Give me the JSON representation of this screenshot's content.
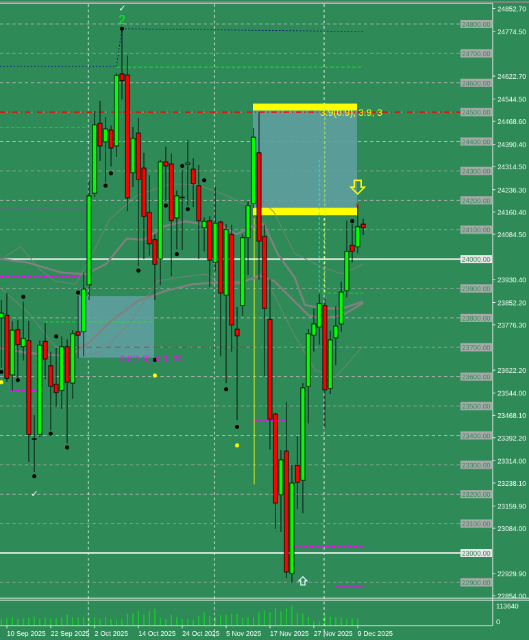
{
  "chart_data": {
    "type": "candlestick",
    "colors": {
      "background": "#2e8b57",
      "bull": "#00ff00",
      "bear": "#ff0000",
      "wick": "#000000",
      "volume": "#00ff00",
      "ma": "#808080",
      "zone": "#5f9ea0",
      "zone_edge": "#ffff00"
    },
    "y_axis": {
      "range": [
        22854.0,
        24852.7
      ],
      "tick_labels": [
        "24852.70",
        "24774.50",
        "24622.70",
        "24544.50",
        "24468.60",
        "24390.40",
        "24314.50",
        "24236.30",
        "24160.40",
        "24084.50",
        "23930.40",
        "23852.20",
        "23776.30",
        "23622.20",
        "23544.00",
        "23468.10",
        "23392.20",
        "23314.00",
        "23238.10",
        "23159.90",
        "23084.00",
        "22929.90",
        "22854.00"
      ],
      "level_labels": [
        "24800.00",
        "24700.00",
        "24600.00",
        "24500.00",
        "24400.00",
        "24300.00",
        "24200.00",
        "24100.00",
        "24000.00",
        "23900.00",
        "23800.00",
        "23700.00",
        "23600.00",
        "23500.00",
        "23400.00",
        "23300.00",
        "23200.00",
        "23100.00",
        "23000.00",
        "22900.00"
      ],
      "highlighted_levels": [
        "24000.00",
        "23000.00"
      ]
    },
    "x_axis": {
      "tick_labels": [
        {
          "bar": 1,
          "label": "10 Sep 2025"
        },
        {
          "bar": 9,
          "label": "22 Sep 2025"
        },
        {
          "bar": 17,
          "label": "2 Oct 2025"
        },
        {
          "bar": 25,
          "label": "14 Oct 2025"
        },
        {
          "bar": 33,
          "label": "24 Oct 2025"
        },
        {
          "bar": 41,
          "label": "5 Nov 2025"
        },
        {
          "bar": 49,
          "label": "17 Nov 2025"
        },
        {
          "bar": 57,
          "label": "27 Nov 2025"
        },
        {
          "bar": 65,
          "label": "9 Dec 2025"
        }
      ],
      "dashed_separators_at_bars": [
        16,
        39,
        59
      ]
    },
    "candles_ohlc": [
      [
        23800,
        23860,
        23630,
        23816
      ],
      [
        23809,
        23884,
        23583,
        23594
      ],
      [
        23606,
        23788,
        23553,
        23758
      ],
      [
        23760,
        23793,
        23597,
        23709
      ],
      [
        23702,
        23856,
        23655,
        23730
      ],
      [
        23723,
        23790,
        23310,
        23403
      ],
      [
        23389,
        23469,
        23275,
        23387
      ],
      [
        23403,
        23723,
        23394,
        23707
      ],
      [
        23720,
        23783,
        23592,
        23660
      ],
      [
        23637,
        23685,
        23417,
        23567
      ],
      [
        23574,
        23699,
        23497,
        23546
      ],
      [
        23553,
        23737,
        23490,
        23702
      ],
      [
        23702,
        23727,
        23373,
        23581
      ],
      [
        23578,
        23758,
        23525,
        23746
      ],
      [
        23753,
        23874,
        23662,
        23741
      ],
      [
        23753,
        23954,
        23669,
        23898
      ],
      [
        23912,
        24268,
        23860,
        24215
      ],
      [
        24224,
        24504,
        24210,
        24457
      ],
      [
        24462,
        24539,
        24334,
        24385
      ],
      [
        24399,
        24483,
        24261,
        24443
      ],
      [
        24439,
        24455,
        24315,
        24378
      ],
      [
        24385,
        24632,
        24348,
        24625
      ],
      [
        24630,
        24784,
        24543,
        24607
      ],
      [
        24627,
        24693,
        24163,
        24208
      ],
      [
        24294,
        24450,
        24245,
        24411
      ],
      [
        24429,
        24481,
        23977,
        24271
      ],
      [
        24310,
        24362,
        24000,
        24145
      ],
      [
        24159,
        24285,
        24012,
        24052
      ],
      [
        24066,
        24084,
        23860,
        23982
      ],
      [
        24000,
        24338,
        23912,
        24331
      ],
      [
        24331,
        24383,
        24198,
        24317
      ],
      [
        24324,
        24359,
        23942,
        24131
      ],
      [
        24140,
        24233,
        24033,
        24215
      ],
      [
        24211,
        24303,
        24031,
        24209
      ],
      [
        24322,
        24406,
        24182,
        24327
      ],
      [
        24306,
        24343,
        24177,
        24257
      ],
      [
        24250,
        24320,
        24000,
        24131
      ],
      [
        24107,
        24142,
        24026,
        24128
      ],
      [
        24131,
        24147,
        23905,
        23996
      ],
      [
        23989,
        24247,
        23958,
        24122
      ],
      [
        24126,
        24131,
        23669,
        23884
      ],
      [
        23877,
        24119,
        23578,
        24101
      ],
      [
        24084,
        24117,
        23683,
        23776
      ],
      [
        23762,
        23837,
        23452,
        23739
      ],
      [
        23842,
        24084,
        23807,
        24073
      ],
      [
        24073,
        24196,
        23947,
        24182
      ],
      [
        24189,
        24446,
        24173,
        24415
      ],
      [
        24362,
        24499,
        23930,
        24061
      ],
      [
        24077,
        24117,
        23602,
        23832
      ],
      [
        23795,
        23933,
        23352,
        23455
      ],
      [
        23473,
        23478,
        23082,
        23170
      ],
      [
        23198,
        23350,
        23072,
        23317
      ],
      [
        23347,
        23513,
        22914,
        22935
      ],
      [
        22930,
        23301,
        22897,
        23238
      ],
      [
        23298,
        23399,
        23149,
        23240
      ],
      [
        23247,
        23578,
        23135,
        23562
      ],
      [
        23567,
        23762,
        23441,
        23746
      ],
      [
        23741,
        23832,
        23685,
        23779
      ],
      [
        23769,
        23881,
        23709,
        23849
      ],
      [
        23842,
        23863,
        23424,
        23555
      ],
      [
        23560,
        23756,
        23541,
        23725
      ],
      [
        23732,
        23839,
        23639,
        23772
      ],
      [
        23779,
        23923,
        23753,
        23888
      ],
      [
        23893,
        24131,
        23870,
        24026
      ],
      [
        24047,
        24119,
        23989,
        24026
      ],
      [
        24042,
        24184,
        24019,
        24110
      ],
      [
        24119,
        24138,
        24082,
        24107
      ]
    ],
    "volume": {
      "axis_labels": [
        "113640",
        "0"
      ],
      "range": [
        0,
        113640
      ],
      "values": [
        38600,
        42000,
        45400,
        38600,
        42000,
        45400,
        52300,
        42000,
        45400,
        42000,
        42000,
        45400,
        62500,
        48800,
        45400,
        48800,
        48800,
        48800,
        38600,
        48800,
        38600,
        35200,
        38600,
        65900,
        69300,
        82900,
        62500,
        82900,
        96600,
        45400,
        38600,
        62500,
        48800,
        38600,
        35200,
        31800,
        55700,
        76100,
        55700,
        48800,
        59100,
        59100,
        69300,
        65900,
        45400,
        48800,
        48800,
        76100,
        86300,
        76100,
        100000,
        82900,
        100000,
        113640,
        72700,
        69300,
        48800,
        25000,
        21600,
        62500,
        52300,
        48800,
        45400,
        38600,
        42000,
        42000
      ]
    },
    "zones": [
      {
        "from_bar": 46,
        "to_bar": 65,
        "top": 24508,
        "bottom": 24163,
        "label": "3.9(0.9), 3.9, 3",
        "label_color": "#ffff00"
      },
      {
        "from_bar": 14,
        "to_bar": 28,
        "top": 23874,
        "bottom": 23665,
        "label": "3.0(1.9), 4.3, 24",
        "label_color": "#ff00ff"
      }
    ],
    "fractal_dots_black": [
      [
        4,
        23872
      ],
      [
        0,
        23616
      ],
      [
        3,
        23588
      ],
      [
        6,
        23261
      ],
      [
        9,
        23406
      ],
      [
        10,
        23737
      ],
      [
        12,
        23359
      ],
      [
        14,
        23886
      ],
      [
        19,
        24250
      ],
      [
        20,
        24292
      ],
      [
        22,
        24784
      ],
      [
        25,
        23961
      ],
      [
        28,
        23657
      ],
      [
        30,
        24182
      ],
      [
        32,
        24017
      ],
      [
        33,
        24317
      ],
      [
        34,
        24170
      ],
      [
        37,
        24268
      ],
      [
        41,
        23557
      ],
      [
        43,
        23429
      ],
      [
        64,
        24129
      ]
    ],
    "dots_yellow": [
      [
        0,
        23581
      ],
      [
        28,
        23604
      ],
      [
        43,
        23366
      ]
    ],
    "wave_label": {
      "text": "2",
      "bar": 22,
      "color": "#00ff00"
    },
    "signals": [
      {
        "type": "check",
        "bar": 6,
        "price": 23200,
        "color": "#ffffff"
      },
      {
        "type": "check",
        "bar": 22,
        "price": 24852,
        "color": "#ffffff"
      },
      {
        "type": "arrow-down",
        "bar": 65,
        "price": 24240,
        "color": "#ffff00"
      },
      {
        "type": "cross",
        "bar": 65,
        "price": 24184,
        "color": "#ff0000"
      },
      {
        "type": "arrow-up",
        "bar": 55,
        "price": 22905,
        "color": "#e0ffff"
      }
    ]
  }
}
